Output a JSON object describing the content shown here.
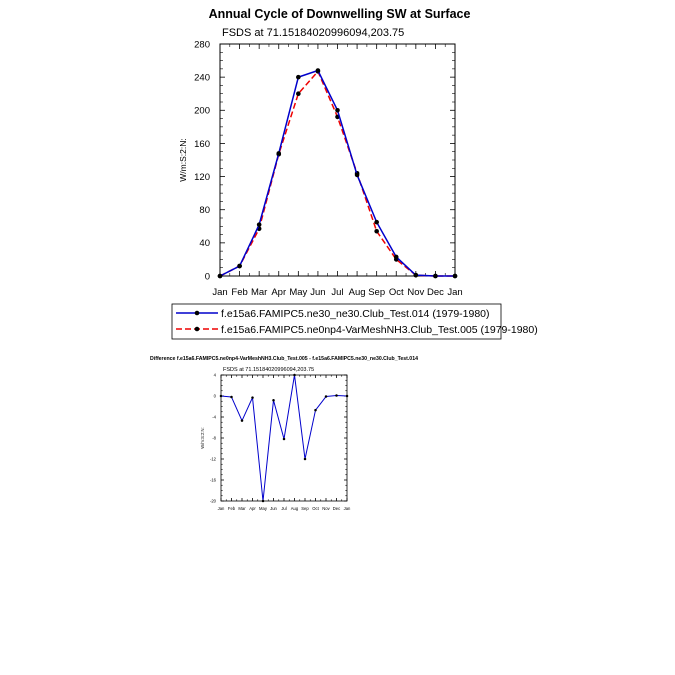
{
  "chart_data": [
    {
      "type": "line",
      "title": "Annual Cycle of Downwelling SW at Surface",
      "subtitle": "FSDS at 71.15184020996094,203.75",
      "ylabel": "W/m:S:2:N:",
      "ylim": [
        0,
        280
      ],
      "yticks": [
        0,
        40,
        80,
        120,
        160,
        200,
        240,
        280
      ],
      "categories": [
        "Jan",
        "Feb",
        "Mar",
        "Apr",
        "May",
        "Jun",
        "Jul",
        "Aug",
        "Sep",
        "Oct",
        "Nov",
        "Dec",
        "Jan"
      ],
      "legend_placement": "below",
      "series": [
        {
          "name": "f.e15a6.FAMIPC5.ne30_ne30.Club_Test.014 (1979-1980)",
          "color": "#0000cc",
          "dash": "solid",
          "values": [
            0,
            12,
            62,
            148,
            240,
            248,
            200,
            122,
            65,
            23,
            1,
            0,
            0
          ]
        },
        {
          "name": "f.e15a6.FAMIPC5.ne0np4-VarMeshNH3.Club_Test.005 (1979-1980)",
          "color": "#ee0000",
          "dash": "dashed",
          "values": [
            0,
            12,
            57,
            147,
            220,
            247,
            192,
            124,
            54,
            20,
            1,
            0,
            0
          ]
        }
      ]
    },
    {
      "type": "line",
      "title": "Difference f.e15a6.FAMIPC5.ne0np4-VarMeshNH3.Club_Test.005 - f.e15a6.FAMIPC5.ne30_ne30.Club_Test.014",
      "subtitle": "FSDS at 71.15184020996094,203.75",
      "ylabel": "W/m:S:2:N:",
      "ylim": [
        -20,
        4
      ],
      "yticks": [
        -20,
        -16,
        -12,
        -8,
        -4,
        0,
        4
      ],
      "categories": [
        "Jan",
        "Feb",
        "Mar",
        "Apr",
        "May",
        "Jun",
        "Jul",
        "Aug",
        "Sep",
        "Oct",
        "Nov",
        "Dec",
        "Jan"
      ],
      "series": [
        {
          "color": "#0000cc",
          "values": [
            0,
            -0.2,
            -4.7,
            -0.3,
            -20,
            -0.8,
            -8.2,
            4,
            -12,
            -2.7,
            -0.1,
            0.1,
            0
          ]
        }
      ]
    }
  ]
}
